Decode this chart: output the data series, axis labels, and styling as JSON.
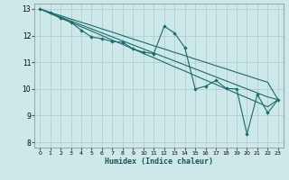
{
  "xlabel": "Humidex (Indice chaleur)",
  "xlim": [
    -0.5,
    23.5
  ],
  "ylim": [
    7.8,
    13.2
  ],
  "xticks": [
    0,
    1,
    2,
    3,
    4,
    5,
    6,
    7,
    8,
    9,
    10,
    11,
    12,
    13,
    14,
    15,
    16,
    17,
    18,
    19,
    20,
    21,
    22,
    23
  ],
  "yticks": [
    8,
    9,
    10,
    11,
    12,
    13
  ],
  "bg_color": "#cce8e8",
  "grid_color": "#aacccc",
  "line_color": "#1a6b6b",
  "line1": [
    [
      0,
      13.0
    ],
    [
      1,
      12.85
    ],
    [
      2,
      12.65
    ],
    [
      3,
      12.5
    ],
    [
      4,
      12.2
    ],
    [
      5,
      11.95
    ],
    [
      6,
      11.88
    ],
    [
      7,
      11.78
    ],
    [
      8,
      11.75
    ],
    [
      9,
      11.5
    ],
    [
      10,
      11.38
    ],
    [
      11,
      11.32
    ],
    [
      12,
      12.35
    ],
    [
      13,
      12.1
    ],
    [
      14,
      11.55
    ],
    [
      15,
      10.0
    ],
    [
      16,
      10.1
    ],
    [
      17,
      10.32
    ],
    [
      18,
      10.02
    ],
    [
      19,
      10.0
    ],
    [
      20,
      8.3
    ],
    [
      21,
      9.8
    ],
    [
      22,
      9.1
    ],
    [
      23,
      9.6
    ]
  ],
  "line2": [
    [
      0,
      13.0
    ],
    [
      1,
      12.87
    ],
    [
      2,
      12.75
    ],
    [
      3,
      12.62
    ],
    [
      4,
      12.5
    ],
    [
      5,
      12.38
    ],
    [
      6,
      12.25
    ],
    [
      7,
      12.13
    ],
    [
      8,
      12.0
    ],
    [
      9,
      11.87
    ],
    [
      10,
      11.75
    ],
    [
      11,
      11.62
    ],
    [
      12,
      11.5
    ],
    [
      13,
      11.37
    ],
    [
      14,
      11.25
    ],
    [
      15,
      11.12
    ],
    [
      16,
      11.0
    ],
    [
      17,
      10.87
    ],
    [
      18,
      10.75
    ],
    [
      19,
      10.62
    ],
    [
      20,
      10.5
    ],
    [
      21,
      10.37
    ],
    [
      22,
      10.25
    ],
    [
      23,
      9.6
    ]
  ],
  "line3": [
    [
      0,
      13.0
    ],
    [
      1,
      12.85
    ],
    [
      2,
      12.7
    ],
    [
      3,
      12.55
    ],
    [
      4,
      12.4
    ],
    [
      5,
      12.25
    ],
    [
      6,
      12.1
    ],
    [
      7,
      11.95
    ],
    [
      8,
      11.8
    ],
    [
      9,
      11.65
    ],
    [
      10,
      11.5
    ],
    [
      11,
      11.35
    ],
    [
      12,
      11.2
    ],
    [
      13,
      11.05
    ],
    [
      14,
      10.9
    ],
    [
      15,
      10.75
    ],
    [
      16,
      10.6
    ],
    [
      17,
      10.45
    ],
    [
      18,
      10.3
    ],
    [
      19,
      10.15
    ],
    [
      20,
      10.0
    ],
    [
      21,
      9.85
    ],
    [
      22,
      9.7
    ],
    [
      23,
      9.6
    ]
  ],
  "line4": [
    [
      0,
      13.0
    ],
    [
      1,
      12.83
    ],
    [
      2,
      12.67
    ],
    [
      3,
      12.5
    ],
    [
      4,
      12.33
    ],
    [
      5,
      12.17
    ],
    [
      6,
      12.0
    ],
    [
      7,
      11.83
    ],
    [
      8,
      11.67
    ],
    [
      9,
      11.5
    ],
    [
      10,
      11.33
    ],
    [
      11,
      11.17
    ],
    [
      12,
      11.0
    ],
    [
      13,
      10.83
    ],
    [
      14,
      10.67
    ],
    [
      15,
      10.5
    ],
    [
      16,
      10.33
    ],
    [
      17,
      10.17
    ],
    [
      18,
      10.0
    ],
    [
      19,
      9.83
    ],
    [
      20,
      9.67
    ],
    [
      21,
      9.5
    ],
    [
      22,
      9.33
    ],
    [
      23,
      9.6
    ]
  ]
}
